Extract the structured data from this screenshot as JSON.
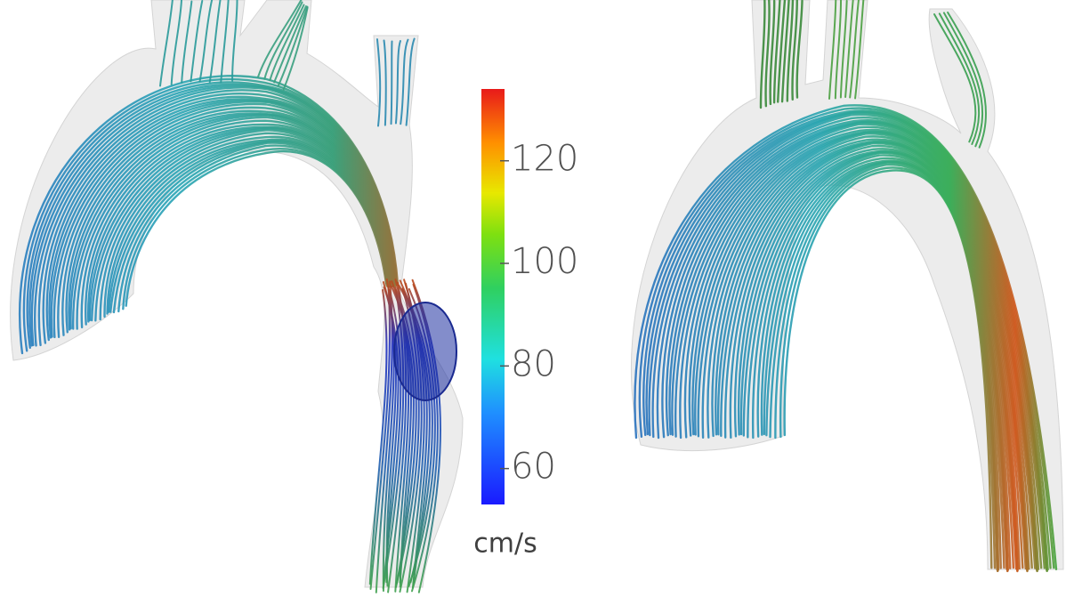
{
  "colorbar": {
    "range": [
      53,
      134
    ],
    "ticks": [
      60,
      80,
      100,
      120
    ],
    "unit": "cm/s"
  }
}
